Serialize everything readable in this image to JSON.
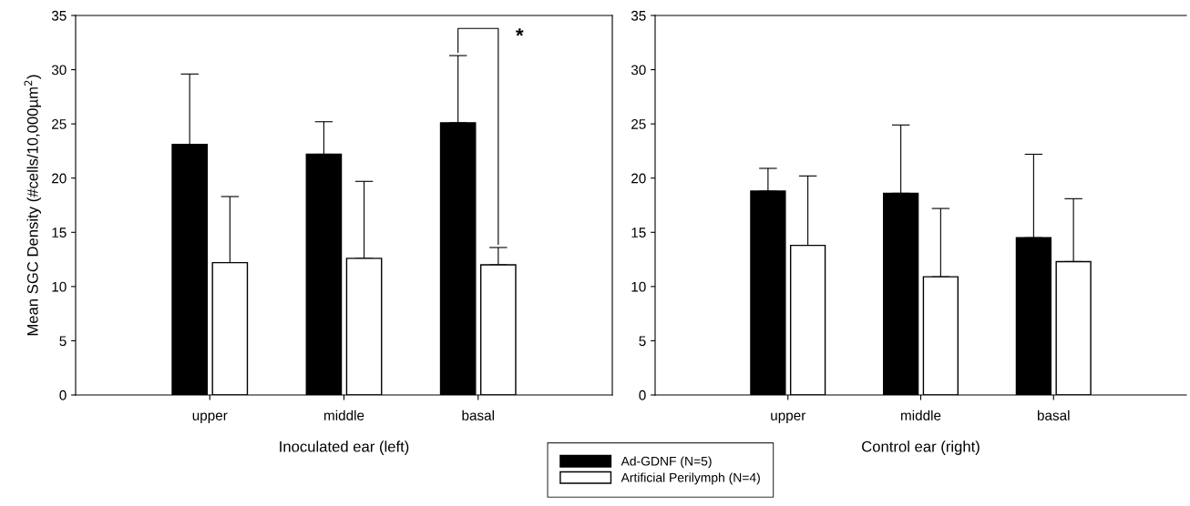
{
  "chart_data": [
    {
      "type": "bar",
      "ylabel": "Mean SGC Density (#cells/10,000µm$^{2}$)",
      "xlabel": "Inoculated ear (left)",
      "categories": [
        "upper",
        "middle",
        "basal"
      ],
      "series": [
        {
          "name": "Ad-GDNF (N=5)",
          "color": "#000000",
          "values": [
            23.1,
            22.2,
            25.1
          ],
          "errors": [
            [
              23.1,
              29.6
            ],
            [
              22.2,
              25.2
            ],
            [
              25.1,
              31.3
            ]
          ]
        },
        {
          "name": "Artificial Perilymph (N=4)",
          "color": "#ffffff",
          "values": [
            12.2,
            12.6,
            12.0
          ],
          "errors": [
            [
              12.2,
              18.3
            ],
            [
              12.6,
              19.7
            ],
            [
              12.0,
              13.6
            ]
          ]
        }
      ],
      "ylim": [
        0,
        35
      ],
      "yticks": [
        0,
        5,
        10,
        15,
        20,
        25,
        30,
        35
      ],
      "legend": "bottom",
      "grid": false,
      "annotations": [
        "*"
      ]
    },
    {
      "type": "bar",
      "xlabel": "Control ear (right)",
      "categories": [
        "upper",
        "middle",
        "basal"
      ],
      "series": [
        {
          "color": "#000000",
          "values": [
            18.8,
            18.6,
            14.5
          ],
          "errors": [
            [
              18.8,
              20.9
            ],
            [
              18.6,
              24.9
            ],
            [
              14.5,
              22.2
            ]
          ]
        },
        {
          "color": "#ffffff",
          "values": [
            13.8,
            10.9,
            12.3
          ],
          "errors": [
            [
              13.8,
              20.2
            ],
            [
              10.9,
              17.2
            ],
            [
              12.3,
              18.1
            ]
          ]
        }
      ],
      "ylim": [
        0,
        35
      ],
      "yticks": [
        0,
        5,
        10,
        15,
        20,
        25,
        30,
        35
      ],
      "grid": false
    }
  ]
}
